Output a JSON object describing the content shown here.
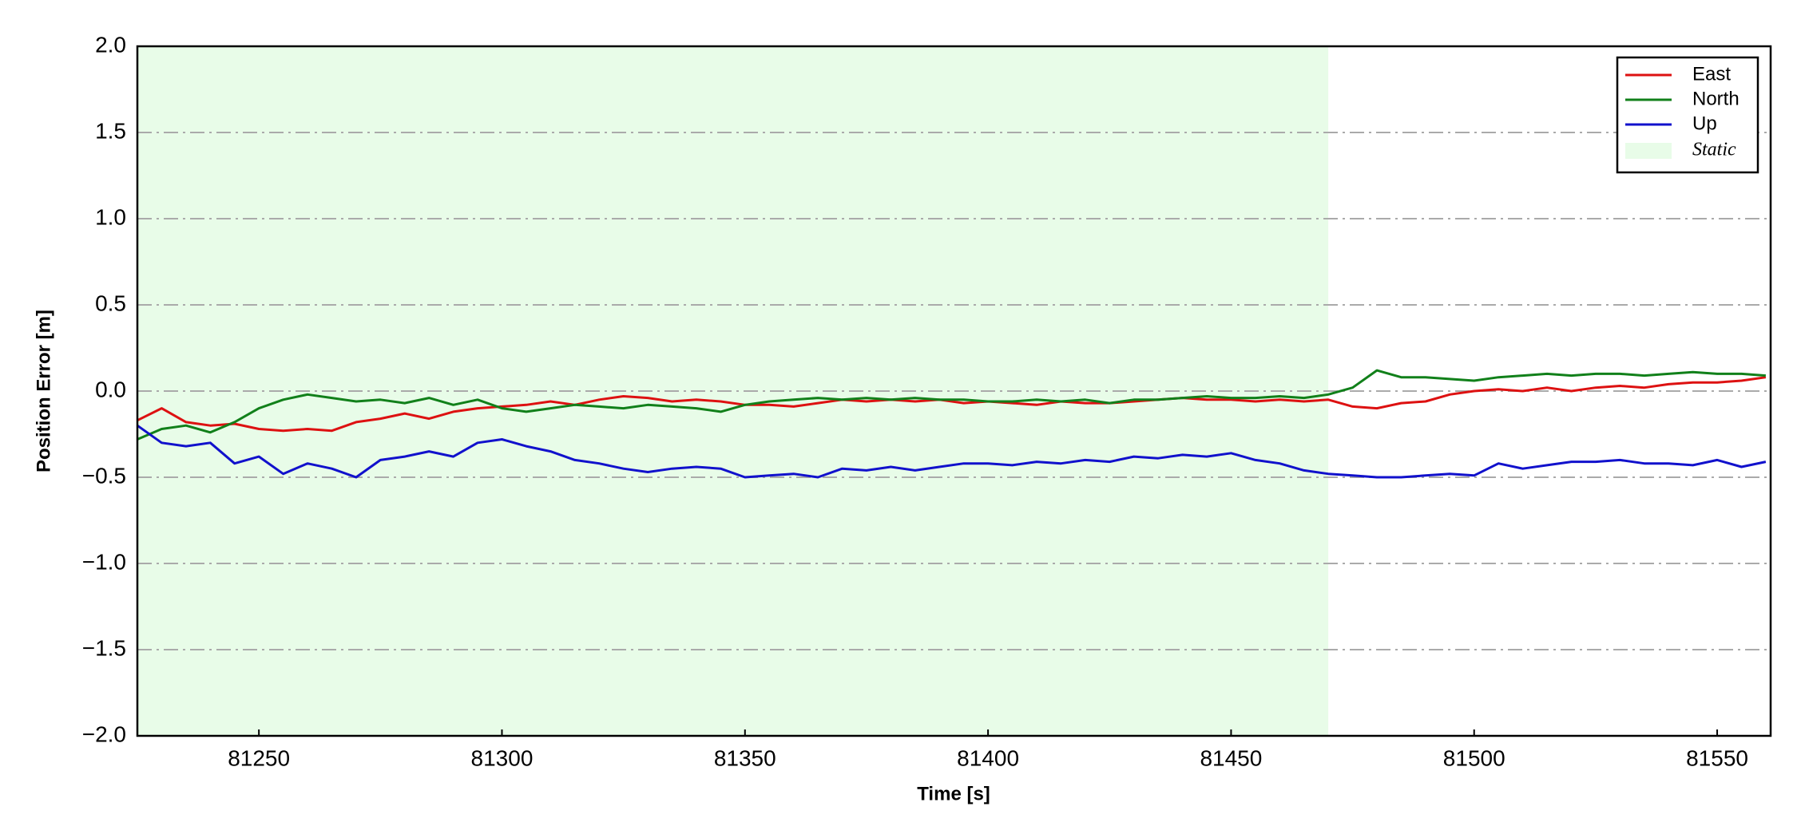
{
  "chart_data": {
    "type": "line",
    "xlabel": "Time [s]",
    "ylabel": "Position Error [m]",
    "x": [
      81225,
      81230,
      81235,
      81240,
      81245,
      81250,
      81255,
      81260,
      81265,
      81270,
      81275,
      81280,
      81285,
      81290,
      81295,
      81300,
      81305,
      81310,
      81315,
      81320,
      81325,
      81330,
      81335,
      81340,
      81345,
      81350,
      81355,
      81360,
      81365,
      81370,
      81375,
      81380,
      81385,
      81390,
      81395,
      81400,
      81405,
      81410,
      81415,
      81420,
      81425,
      81430,
      81435,
      81440,
      81445,
      81450,
      81455,
      81460,
      81465,
      81470,
      81475,
      81480,
      81485,
      81490,
      81495,
      81500,
      81505,
      81510,
      81515,
      81520,
      81525,
      81530,
      81535,
      81540,
      81545,
      81550,
      81555,
      81560
    ],
    "series": [
      {
        "name": "East",
        "color": "#dd1111",
        "values": [
          -0.17,
          -0.1,
          -0.18,
          -0.2,
          -0.19,
          -0.22,
          -0.23,
          -0.22,
          -0.23,
          -0.18,
          -0.16,
          -0.13,
          -0.16,
          -0.12,
          -0.1,
          -0.09,
          -0.08,
          -0.06,
          -0.08,
          -0.05,
          -0.03,
          -0.04,
          -0.06,
          -0.05,
          -0.06,
          -0.08,
          -0.08,
          -0.09,
          -0.07,
          -0.05,
          -0.06,
          -0.05,
          -0.06,
          -0.05,
          -0.07,
          -0.06,
          -0.07,
          -0.08,
          -0.06,
          -0.07,
          -0.07,
          -0.06,
          -0.05,
          -0.04,
          -0.05,
          -0.05,
          -0.06,
          -0.05,
          -0.06,
          -0.05,
          -0.09,
          -0.1,
          -0.07,
          -0.06,
          -0.02,
          0.0,
          0.01,
          0.0,
          0.02,
          0.0,
          0.02,
          0.03,
          0.02,
          0.04,
          0.05,
          0.05,
          0.06,
          0.08
        ]
      },
      {
        "name": "North",
        "color": "#11801a",
        "values": [
          -0.28,
          -0.22,
          -0.2,
          -0.24,
          -0.18,
          -0.1,
          -0.05,
          -0.02,
          -0.04,
          -0.06,
          -0.05,
          -0.07,
          -0.04,
          -0.08,
          -0.05,
          -0.1,
          -0.12,
          -0.1,
          -0.08,
          -0.09,
          -0.1,
          -0.08,
          -0.09,
          -0.1,
          -0.12,
          -0.08,
          -0.06,
          -0.05,
          -0.04,
          -0.05,
          -0.04,
          -0.05,
          -0.04,
          -0.05,
          -0.05,
          -0.06,
          -0.06,
          -0.05,
          -0.06,
          -0.05,
          -0.07,
          -0.05,
          -0.05,
          -0.04,
          -0.03,
          -0.04,
          -0.04,
          -0.03,
          -0.04,
          -0.02,
          0.02,
          0.12,
          0.08,
          0.08,
          0.07,
          0.06,
          0.08,
          0.09,
          0.1,
          0.09,
          0.1,
          0.1,
          0.09,
          0.1,
          0.11,
          0.1,
          0.1,
          0.09
        ]
      },
      {
        "name": "Up",
        "color": "#1111cc",
        "values": [
          -0.2,
          -0.3,
          -0.32,
          -0.3,
          -0.42,
          -0.38,
          -0.48,
          -0.42,
          -0.45,
          -0.5,
          -0.4,
          -0.38,
          -0.35,
          -0.38,
          -0.3,
          -0.28,
          -0.32,
          -0.35,
          -0.4,
          -0.42,
          -0.45,
          -0.47,
          -0.45,
          -0.44,
          -0.45,
          -0.5,
          -0.49,
          -0.48,
          -0.5,
          -0.45,
          -0.46,
          -0.44,
          -0.46,
          -0.44,
          -0.42,
          -0.42,
          -0.43,
          -0.41,
          -0.42,
          -0.4,
          -0.41,
          -0.38,
          -0.39,
          -0.37,
          -0.38,
          -0.36,
          -0.4,
          -0.42,
          -0.46,
          -0.48,
          -0.49,
          -0.5,
          -0.5,
          -0.49,
          -0.48,
          -0.49,
          -0.42,
          -0.45,
          -0.43,
          -0.41,
          -0.41,
          -0.4,
          -0.42,
          -0.42,
          -0.43,
          -0.4,
          -0.44,
          -0.41
        ]
      }
    ],
    "static_region": {
      "name": "Static",
      "xlim": [
        81225,
        81470
      ],
      "color": "#e8fce8"
    },
    "xlim": [
      81225,
      81561
    ],
    "xticks": [
      81250,
      81300,
      81350,
      81400,
      81450,
      81500,
      81550
    ],
    "ylim": [
      -2,
      2
    ],
    "yticks": [
      {
        "value": -2,
        "label": "−2.0"
      },
      {
        "value": -1.5,
        "label": "−1.5"
      },
      {
        "value": -1,
        "label": "−1.0"
      },
      {
        "value": -0.5,
        "label": "−0.5"
      },
      {
        "value": 0,
        "label": "0.0"
      },
      {
        "value": 0.5,
        "label": "0.5"
      },
      {
        "value": 1,
        "label": "1.0"
      },
      {
        "value": 1.5,
        "label": "1.5"
      },
      {
        "value": 2,
        "label": "2.0"
      }
    ],
    "grid": true,
    "legend": "upper right"
  }
}
